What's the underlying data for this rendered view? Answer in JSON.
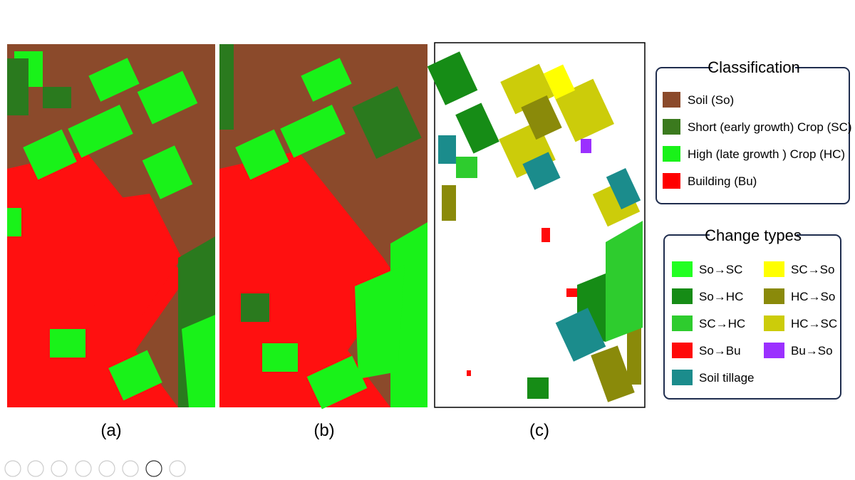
{
  "panels": [
    {
      "label": "(a)"
    },
    {
      "label": "(b)"
    },
    {
      "label": "(c)"
    }
  ],
  "classification": {
    "title": "Classification",
    "items": [
      {
        "label": "Soil (So)",
        "color": "#8b4a2b"
      },
      {
        "label": "Short (early growth) Crop (SC)",
        "color": "#3b7a1e"
      },
      {
        "label": "High (late growth ) Crop (HC)",
        "color": "#19f219"
      },
      {
        "label": "Building (Bu)",
        "color": "#ff0000"
      }
    ]
  },
  "change_types": {
    "title": "Change types",
    "items": [
      {
        "label": "So→SC",
        "color": "#22ff22"
      },
      {
        "label": "So→HC",
        "color": "#168c16"
      },
      {
        "label": "SC→HC",
        "color": "#2ecc2e"
      },
      {
        "label": "So→Bu",
        "color": "#ff0a0a"
      },
      {
        "label": "Soil tillage",
        "color": "#1b8c8c"
      },
      {
        "label": "SC→So",
        "color": "#ffff00"
      },
      {
        "label": "HC→So",
        "color": "#8a8a0a"
      },
      {
        "label": "HC→SC",
        "color": "#cccc0a"
      },
      {
        "label": "Bu→So",
        "color": "#9b30ff"
      }
    ]
  }
}
